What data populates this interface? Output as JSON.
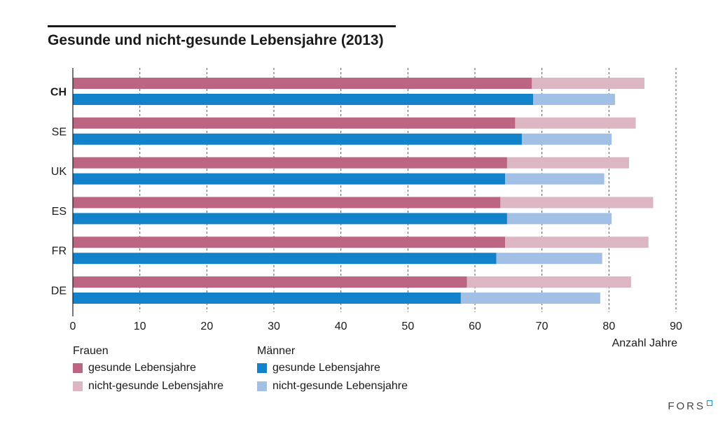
{
  "title": "Gesunde und nicht-gesunde Lebensjahre (2013)",
  "colors": {
    "frauen_gesund": "#bb6583",
    "frauen_nicht_gesund": "#dcb6c3",
    "maenner_gesund": "#1283cb",
    "maenner_nicht_gesund": "#a2bfe6"
  },
  "chart_data": {
    "type": "bar",
    "orientation": "horizontal",
    "stacked": true,
    "categories": [
      "CH",
      "SE",
      "UK",
      "ES",
      "FR",
      "DE"
    ],
    "highlight_category": "CH",
    "series": [
      {
        "group": "Frauen",
        "healthy": [
          68.5,
          66.0,
          64.8,
          63.8,
          64.5,
          58.8
        ],
        "total": [
          85.3,
          84.0,
          83.0,
          86.6,
          85.9,
          83.3
        ]
      },
      {
        "group": "Männer",
        "healthy": [
          68.7,
          67.0,
          64.5,
          64.8,
          63.2,
          57.9
        ],
        "total": [
          80.9,
          80.4,
          79.3,
          80.4,
          79.0,
          78.7
        ]
      }
    ],
    "xlim": [
      0,
      90
    ],
    "xticks": [
      0,
      10,
      20,
      30,
      40,
      50,
      60,
      70,
      80,
      90
    ],
    "xlabel": "Anzahl Jahre",
    "grid": "vertical-dashed"
  },
  "legend": {
    "frauen": {
      "title": "Frauen",
      "healthy_label": "gesunde Lebensjahre",
      "unhealthy_label": "nicht-gesunde Lebensjahre"
    },
    "maenner": {
      "title": "Männer",
      "healthy_label": "gesunde Lebensjahre",
      "unhealthy_label": "nicht-gesunde Lebensjahre"
    }
  },
  "logo": {
    "text": "FORS"
  }
}
